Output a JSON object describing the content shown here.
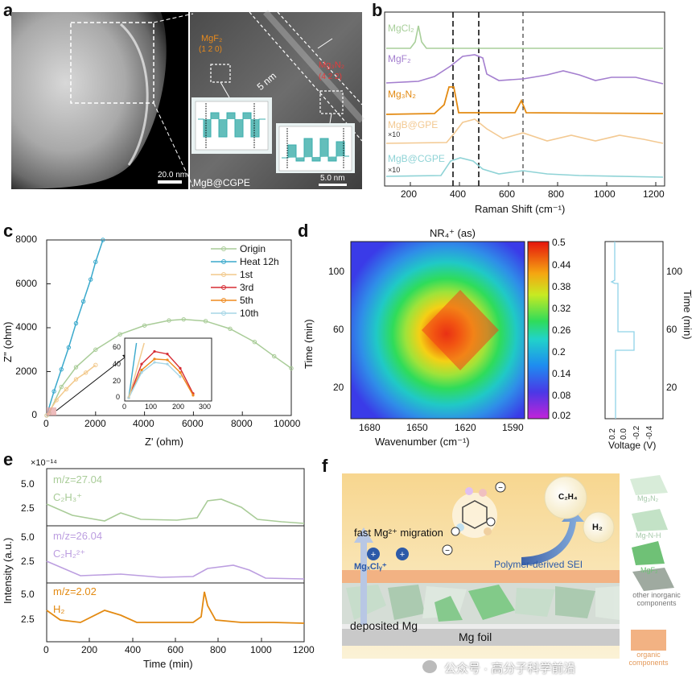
{
  "panel_labels": {
    "a": "a",
    "b": "b",
    "c": "c",
    "d": "d",
    "e": "e",
    "f": "f"
  },
  "panel_a": {
    "scale_left": "20.0 nm",
    "scale_right": "5.0 nm",
    "mgf2_label": "MgF₂",
    "mgf2_plane": "(1 2 0)",
    "mg3n2_label": "Mg₃N₂",
    "mg3n2_plane": "(4 2 2)",
    "dist": "5 nm",
    "caption": "MgB@CGPE"
  },
  "panel_b": {
    "xlabel": "Raman Shift (cm⁻¹)",
    "xticks": [
      "200",
      "400",
      "600",
      "800",
      "1000",
      "1200"
    ],
    "series": [
      {
        "name": "MgCl₂",
        "color": "#a8cf9a"
      },
      {
        "name": "MgF₂",
        "color": "#a47fcf"
      },
      {
        "name": "Mg₃N₂",
        "color": "#e38a12"
      },
      {
        "name": "MgB@GPE",
        "color": "#f3c992"
      },
      {
        "name": "MgB@CGPE",
        "color": "#8fd3d6"
      }
    ],
    "mult": "×10"
  },
  "chart_data": [
    {
      "type": "line",
      "xlabel": "Z' (ohm)",
      "ylabel": "Z'' (ohm)",
      "xlim": [
        0,
        10000
      ],
      "ylim": [
        0,
        8000
      ],
      "xticks": [
        "0",
        "2000",
        "4000",
        "6000",
        "8000",
        "10000"
      ],
      "yticks": [
        "0",
        "2000",
        "4000",
        "6000",
        "8000"
      ],
      "series": [
        {
          "name": "Origin",
          "color": "#a9cc98",
          "x": [
            100,
            600,
            1200,
            2000,
            3000,
            4000,
            5000,
            5600,
            6500,
            7500,
            8500,
            9300,
            10000
          ],
          "y": [
            100,
            1300,
            2200,
            3000,
            3700,
            4100,
            4330,
            4380,
            4300,
            3950,
            3350,
            2700,
            2150
          ]
        },
        {
          "name": "Heat 12h",
          "color": "#3aa9cc",
          "x": [
            0,
            300,
            600,
            900,
            1200,
            1500,
            1800,
            2000,
            2300
          ],
          "y": [
            0,
            1100,
            2100,
            3100,
            4200,
            5200,
            6200,
            7000,
            8000
          ]
        },
        {
          "name": "1st",
          "color": "#f2c98c",
          "x": [
            0,
            400,
            800,
            1200,
            1600,
            2000
          ],
          "y": [
            0,
            700,
            1200,
            1650,
            1950,
            2300
          ]
        },
        {
          "name": "3rd",
          "color": "#d62d35",
          "x": [
            0,
            50,
            100,
            150,
            200,
            250
          ],
          "y": [
            0,
            40,
            55,
            52,
            35,
            5
          ]
        },
        {
          "name": "5th",
          "color": "#ef8a1e",
          "x": [
            0,
            50,
            100,
            150,
            200,
            250
          ],
          "y": [
            0,
            33,
            46,
            45,
            30,
            3
          ]
        },
        {
          "name": "10th",
          "color": "#a6d6e6",
          "x": [
            0,
            50,
            100,
            150,
            200
          ],
          "y": [
            0,
            30,
            42,
            40,
            25
          ]
        }
      ],
      "inset": {
        "xticks": [
          "0",
          "100",
          "200",
          "300"
        ],
        "yticks": [
          "0",
          "20",
          "40",
          "60"
        ]
      }
    },
    {
      "type": "heatmap",
      "title": "NR₄⁺ (as)",
      "xlabel": "Wavenumber (cm⁻¹)",
      "ylabel": "Time (min)",
      "xticks": [
        "1680",
        "1650",
        "1620",
        "1590"
      ],
      "yticks": [
        "20",
        "60",
        "100"
      ],
      "colorbar": [
        "0.5",
        "0.44",
        "0.38",
        "0.32",
        "0.26",
        "0.2",
        "0.14",
        "0.08",
        "0.02"
      ],
      "side": {
        "xlabel": "Voltage (V)",
        "ylabel": "Time (min)",
        "xticks": [
          "0.2",
          "0.0",
          "-0.2",
          "-0.4"
        ],
        "yticks": [
          "20",
          "60",
          "100"
        ]
      }
    },
    {
      "type": "line",
      "xlabel": "Time (min)",
      "ylabel": "Intensity (a.u.)",
      "exponent": "×10⁻¹⁴",
      "xlim": [
        0,
        1200
      ],
      "xticks": [
        "0",
        "200",
        "400",
        "600",
        "800",
        "1000",
        "1200"
      ],
      "series": [
        {
          "name": "C₂H₃⁺",
          "mz": "m/z=27.04",
          "color": "#a9cc98",
          "yticks": [
            "2.5",
            "5.0"
          ]
        },
        {
          "name": "C₂H₂²⁺",
          "mz": "m/z=26.04",
          "color": "#bc9ee0",
          "yticks": [
            "2.5",
            "5.0"
          ]
        },
        {
          "name": "H₂",
          "mz": "m/z=2.02",
          "color": "#e38a12",
          "yticks": [
            "2.5",
            "5.0"
          ]
        }
      ]
    }
  ],
  "panel_f": {
    "c2h4": "C₂H₄",
    "h2": "H₂",
    "migration": "fast Mg²⁺ migration",
    "mgxcly": "MgₓClᵧ⁺",
    "sei": "Polymer-derived SEI",
    "deposited": "deposited Mg",
    "foil": "Mg foil",
    "legend": [
      "Mg₃N₂",
      "Mg-N-H",
      "MgF₂",
      "other inorganic components",
      "organic components"
    ]
  },
  "watermark": "公众号 · 高分子科学前沿"
}
